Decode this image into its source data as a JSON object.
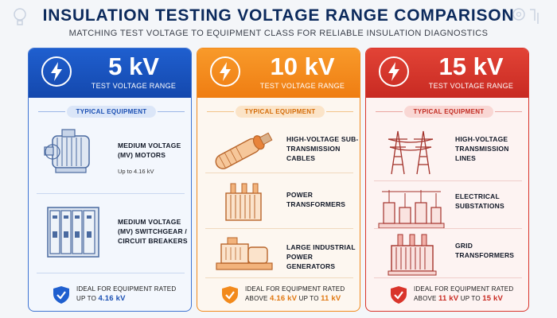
{
  "header": {
    "title": "INSULATION TESTING VOLTAGE RANGE COMPARISON",
    "subtitle": "MATCHING TEST VOLTAGE TO EQUIPMENT CLASS FOR RELIABLE INSULATION DIAGNOSTICS"
  },
  "columns": [
    {
      "voltage": "5 kV",
      "range_label": "TEST VOLTAGE RANGE",
      "pill": "TYPICAL EQUIPMENT",
      "accent": "#1f5fcf",
      "items": [
        {
          "label": "MEDIUM VOLTAGE (MV) MOTORS",
          "note": "Up to 4.16 kV",
          "icon": "motor-icon"
        },
        {
          "label": "MEDIUM VOLTAGE (MV) SWITCHGEAR / CIRCUIT BREAKERS",
          "icon": "switchgear-icon"
        }
      ],
      "footer": {
        "line1": "IDEAL FOR EQUIPMENT RATED",
        "pre": "UP TO",
        "value1": "4.16 kV",
        "mid": "",
        "value2": ""
      }
    },
    {
      "voltage": "10 kV",
      "range_label": "TEST VOLTAGE RANGE",
      "pill": "TYPICAL EQUIPMENT",
      "accent": "#f28a1c",
      "items": [
        {
          "label": "HIGH-VOLTAGE SUB-TRANSMISSION CABLES",
          "icon": "cable-icon"
        },
        {
          "label": "POWER TRANSFORMERS",
          "icon": "transformer-icon"
        },
        {
          "label": "LARGE INDUSTRIAL POWER GENERATORS",
          "icon": "generator-icon"
        }
      ],
      "footer": {
        "line1": "IDEAL FOR EQUIPMENT RATED",
        "pre": "ABOVE",
        "value1": "4.16 kV",
        "mid": "UP TO",
        "value2": "11 kV"
      }
    },
    {
      "voltage": "15 kV",
      "range_label": "TEST VOLTAGE RANGE",
      "pill": "TYPICAL EQUIPMENT",
      "accent": "#d9342b",
      "items": [
        {
          "label": "HIGH-VOLTAGE TRANSMISSION LINES",
          "icon": "transmission-tower-icon"
        },
        {
          "label": "ELECTRICAL SUBSTATIONS",
          "icon": "substation-icon"
        },
        {
          "label": "GRID TRANSFORMERS",
          "icon": "grid-transformer-icon"
        }
      ],
      "footer": {
        "line1": "IDEAL FOR EQUIPMENT RATED",
        "pre": "ABOVE",
        "value1": "11 kV",
        "mid": "UP TO",
        "value2": "15 kV"
      }
    }
  ]
}
